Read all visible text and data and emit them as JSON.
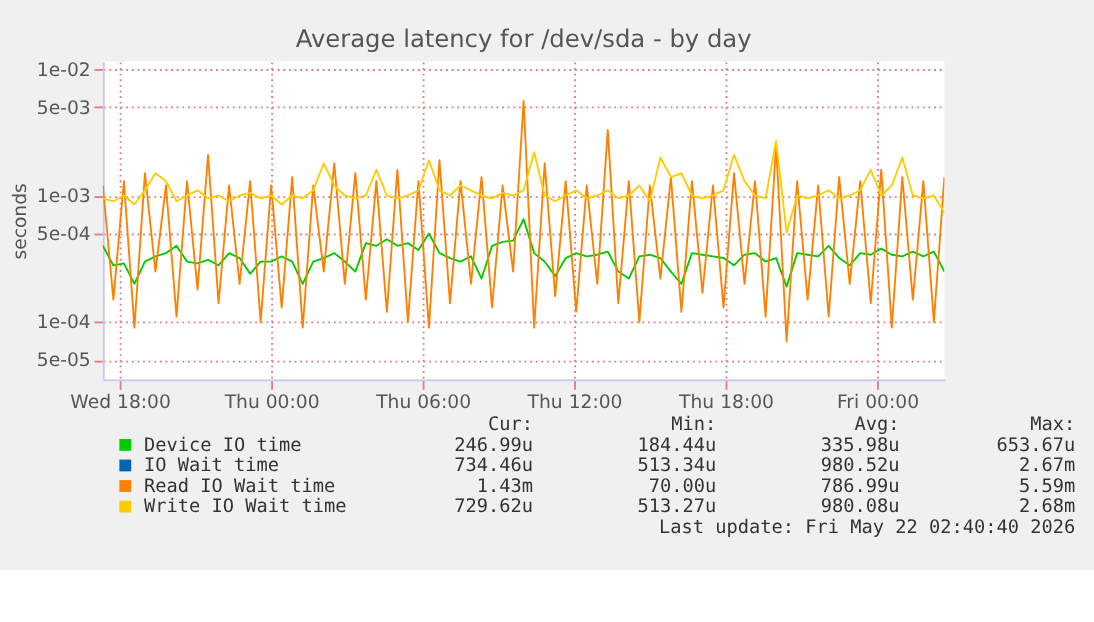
{
  "chart_data": {
    "type": "line",
    "title": "Average latency for /dev/sda - by day",
    "ylabel": "seconds",
    "x": [
      "2026-05-20T17:20",
      "2026-05-20T17:45",
      "2026-05-20T18:10",
      "2026-05-20T18:35",
      "2026-05-20T19:00",
      "2026-05-20T19:25",
      "2026-05-20T19:50",
      "2026-05-20T20:15",
      "2026-05-20T20:40",
      "2026-05-20T21:05",
      "2026-05-20T21:30",
      "2026-05-20T21:55",
      "2026-05-20T22:20",
      "2026-05-20T22:45",
      "2026-05-20T23:10",
      "2026-05-20T23:35",
      "2026-05-21T00:00",
      "2026-05-21T00:25",
      "2026-05-21T00:50",
      "2026-05-21T01:15",
      "2026-05-21T01:40",
      "2026-05-21T02:05",
      "2026-05-21T02:30",
      "2026-05-21T02:55",
      "2026-05-21T03:20",
      "2026-05-21T03:45",
      "2026-05-21T04:10",
      "2026-05-21T04:35",
      "2026-05-21T05:00",
      "2026-05-21T05:25",
      "2026-05-21T05:50",
      "2026-05-21T06:15",
      "2026-05-21T06:40",
      "2026-05-21T07:05",
      "2026-05-21T07:30",
      "2026-05-21T07:55",
      "2026-05-21T08:20",
      "2026-05-21T08:45",
      "2026-05-21T09:10",
      "2026-05-21T09:35",
      "2026-05-21T10:00",
      "2026-05-21T10:25",
      "2026-05-21T10:50",
      "2026-05-21T11:15",
      "2026-05-21T11:40",
      "2026-05-21T12:05",
      "2026-05-21T12:30",
      "2026-05-21T12:55",
      "2026-05-21T13:20",
      "2026-05-21T13:45",
      "2026-05-21T14:10",
      "2026-05-21T14:35",
      "2026-05-21T15:00",
      "2026-05-21T15:25",
      "2026-05-21T15:50",
      "2026-05-21T16:15",
      "2026-05-21T16:40",
      "2026-05-21T17:05",
      "2026-05-21T17:30",
      "2026-05-21T17:55",
      "2026-05-21T18:20",
      "2026-05-21T18:45",
      "2026-05-21T19:10",
      "2026-05-21T19:35",
      "2026-05-21T20:00",
      "2026-05-21T20:25",
      "2026-05-21T20:50",
      "2026-05-21T21:15",
      "2026-05-21T21:40",
      "2026-05-21T22:05",
      "2026-05-21T22:30",
      "2026-05-21T22:55",
      "2026-05-21T23:20",
      "2026-05-21T23:45",
      "2026-05-22T00:10",
      "2026-05-22T00:35",
      "2026-05-22T01:00",
      "2026-05-22T01:25",
      "2026-05-22T01:50",
      "2026-05-22T02:15",
      "2026-05-22T02:40"
    ],
    "series": [
      {
        "name": "Device IO time",
        "color": "#00cc00",
        "values": [
          0.0004,
          0.00028,
          0.00029,
          0.0002,
          0.0003,
          0.00033,
          0.00035,
          0.0004,
          0.0003,
          0.00029,
          0.00031,
          0.00028,
          0.00035,
          0.00032,
          0.00024,
          0.0003,
          0.0003,
          0.00033,
          0.0003,
          0.0002,
          0.0003,
          0.00032,
          0.00035,
          0.0003,
          0.00025,
          0.00042,
          0.0004,
          0.00045,
          0.0004,
          0.00042,
          0.00037,
          0.0005,
          0.00035,
          0.00032,
          0.0003,
          0.00033,
          0.00022,
          0.0004,
          0.00043,
          0.00044,
          0.00065,
          0.00035,
          0.0003,
          0.00023,
          0.00032,
          0.00035,
          0.00033,
          0.00034,
          0.00036,
          0.00025,
          0.00022,
          0.00033,
          0.00034,
          0.00032,
          0.00025,
          0.0002,
          0.00035,
          0.00034,
          0.00033,
          0.00032,
          0.00028,
          0.00034,
          0.00035,
          0.0003,
          0.00032,
          0.00019,
          0.00035,
          0.00034,
          0.00033,
          0.0004,
          0.00032,
          0.00028,
          0.00035,
          0.00034,
          0.00038,
          0.00034,
          0.00033,
          0.00036,
          0.00033,
          0.00036,
          0.00025
        ]
      },
      {
        "name": "IO Wait time",
        "color": "#0066b3",
        "values": [
          null,
          null,
          null,
          null,
          null,
          null,
          null,
          null,
          null,
          null,
          null,
          null,
          null,
          null,
          null,
          null,
          null,
          null,
          null,
          null,
          null,
          null,
          null,
          null,
          null,
          null,
          null,
          null,
          null,
          null,
          null,
          null,
          null,
          null,
          null,
          null,
          null,
          null,
          null,
          null,
          null,
          null,
          null,
          null,
          null,
          null,
          null,
          null,
          null,
          null,
          null,
          null,
          null,
          null,
          null,
          null,
          null,
          null,
          null,
          null,
          null,
          null,
          null,
          null,
          null,
          null,
          null,
          null,
          null,
          null,
          null,
          null,
          null,
          null,
          null,
          null,
          null,
          null,
          null,
          null,
          null
        ]
      },
      {
        "name": "Read IO Wait time",
        "color": "#ff8000",
        "values": [
          0.0012,
          0.00015,
          0.0013,
          9e-05,
          0.0015,
          0.00025,
          0.0012,
          0.00011,
          0.0013,
          0.00018,
          0.0021,
          0.00014,
          0.0012,
          0.0002,
          0.0013,
          0.0001,
          0.0012,
          0.00013,
          0.0014,
          9e-05,
          0.0012,
          0.00025,
          0.0018,
          0.0002,
          0.0015,
          0.00015,
          0.0013,
          0.00012,
          0.0016,
          0.0001,
          0.0013,
          9e-05,
          0.0019,
          0.00014,
          0.0013,
          0.0002,
          0.0014,
          0.00013,
          0.0012,
          0.00025,
          0.0056,
          9e-05,
          0.0018,
          0.00016,
          0.0013,
          0.00012,
          0.0012,
          0.0002,
          0.0033,
          0.00014,
          0.0013,
          0.0001,
          0.0012,
          0.00022,
          0.0014,
          0.00012,
          0.0013,
          0.00017,
          0.0012,
          0.00013,
          0.0015,
          0.0002,
          0.0013,
          0.00011,
          0.0025,
          7e-05,
          0.0013,
          0.00015,
          0.0012,
          0.00011,
          0.0014,
          0.0002,
          0.0013,
          0.00014,
          0.0016,
          9e-05,
          0.0014,
          0.00015,
          0.0013,
          0.0001,
          0.0014
        ]
      },
      {
        "name": "Write IO Wait time",
        "color": "#ffcc00",
        "values": [
          0.00095,
          0.0009,
          0.001,
          0.00085,
          0.0011,
          0.0015,
          0.0013,
          0.0009,
          0.001,
          0.0011,
          0.00095,
          0.001,
          0.0009,
          0.001,
          0.00105,
          0.00095,
          0.001,
          0.00085,
          0.001,
          0.00095,
          0.0011,
          0.0018,
          0.0012,
          0.001,
          0.00095,
          0.001,
          0.0016,
          0.001,
          0.00095,
          0.001,
          0.0011,
          0.0019,
          0.0011,
          0.001,
          0.0012,
          0.0011,
          0.001,
          0.00095,
          0.00105,
          0.001,
          0.0011,
          0.0022,
          0.001,
          0.0009,
          0.001,
          0.0011,
          0.00095,
          0.001,
          0.0011,
          0.00095,
          0.001,
          0.0012,
          0.0009,
          0.002,
          0.0014,
          0.0015,
          0.001,
          0.00095,
          0.001,
          0.0011,
          0.0021,
          0.0013,
          0.001,
          0.00095,
          0.0027,
          0.00051,
          0.001,
          0.00095,
          0.001,
          0.0011,
          0.00095,
          0.001,
          0.0011,
          0.0016,
          0.001,
          0.0012,
          0.002,
          0.001,
          0.00095,
          0.001,
          0.00073
        ]
      }
    ],
    "xlim": [
      "2026-05-20T17:20",
      "2026-05-22T02:40"
    ],
    "xticks": [
      {
        "value": "2026-05-20T18:00",
        "label": "Wed 18:00"
      },
      {
        "value": "2026-05-21T00:00",
        "label": "Thu 00:00"
      },
      {
        "value": "2026-05-21T06:00",
        "label": "Thu 06:00"
      },
      {
        "value": "2026-05-21T12:00",
        "label": "Thu 12:00"
      },
      {
        "value": "2026-05-21T18:00",
        "label": "Thu 18:00"
      },
      {
        "value": "2026-05-22T00:00",
        "label": "Fri 00:00"
      }
    ],
    "ylim": [
      3.5e-05,
      0.0115
    ],
    "yticks": [
      {
        "value": 5e-05,
        "label": "5e-05"
      },
      {
        "value": 0.0001,
        "label": "1e-04"
      },
      {
        "value": 0.0005,
        "label": "5e-04"
      },
      {
        "value": 0.001,
        "label": "1e-03"
      },
      {
        "value": 0.005,
        "label": "5e-03"
      },
      {
        "value": 0.01,
        "label": "1e-02"
      }
    ],
    "log": "y",
    "grid": true,
    "legend": "bottom",
    "annotations": [
      "Cur:",
      "Min:",
      "Avg:",
      "Max:",
      "246.99u",
      "184.44u",
      "335.98u",
      "653.67u",
      "734.46u",
      "513.34u",
      "980.52u",
      "2.67m",
      "1.43m",
      "70.00u",
      "786.99u",
      "5.59m",
      "729.62u",
      "513.27u",
      "980.08u",
      "2.68m",
      "Last update: Fri May 22 02:40:40 2026"
    ]
  }
}
